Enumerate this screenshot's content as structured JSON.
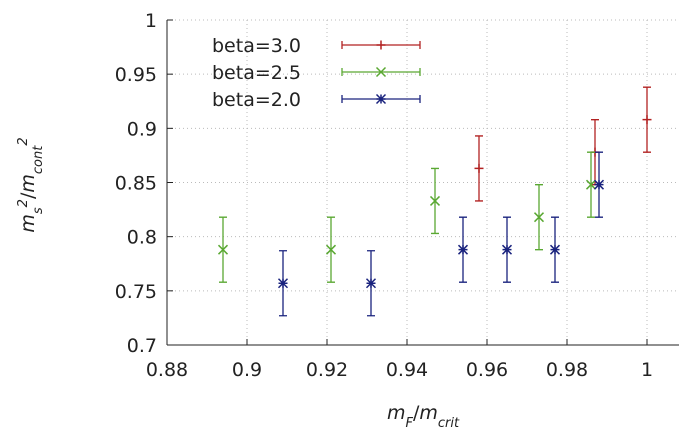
{
  "chart_data": {
    "type": "scatter",
    "xlabel": [
      "m",
      "F",
      "/",
      "m",
      "crit"
    ],
    "ylabel": [
      "m",
      "s",
      "2",
      "/",
      "m",
      "cont",
      "2"
    ],
    "xlim": [
      0.88,
      1.008
    ],
    "ylim": [
      0.7,
      1
    ],
    "xticks": [
      0.88,
      0.9,
      0.92,
      0.94,
      0.96,
      0.98,
      1
    ],
    "yticks": [
      0.7,
      0.75,
      0.8,
      0.85,
      0.9,
      0.95,
      1
    ],
    "grid": true,
    "legend": "upper left",
    "series": [
      {
        "name": "beta=3.0",
        "color": "#b22222",
        "marker": "plus",
        "x": [
          0.958,
          0.987,
          1.0
        ],
        "values": [
          0.863,
          0.878,
          0.908
        ],
        "errors": [
          0.03,
          0.03,
          0.03
        ]
      },
      {
        "name": "beta=2.5",
        "color": "#5aa832",
        "marker": "cross",
        "x": [
          0.894,
          0.921,
          0.947,
          0.973,
          0.986
        ],
        "values": [
          0.788,
          0.788,
          0.833,
          0.818,
          0.848
        ],
        "errors": [
          0.03,
          0.03,
          0.03,
          0.03,
          0.03
        ]
      },
      {
        "name": "beta=2.0",
        "color": "#1a237e",
        "marker": "star",
        "x": [
          0.909,
          0.931,
          0.954,
          0.965,
          0.977,
          0.988
        ],
        "values": [
          0.757,
          0.757,
          0.788,
          0.788,
          0.788,
          0.848
        ],
        "errors": [
          0.03,
          0.03,
          0.03,
          0.03,
          0.03,
          0.03
        ]
      }
    ]
  }
}
